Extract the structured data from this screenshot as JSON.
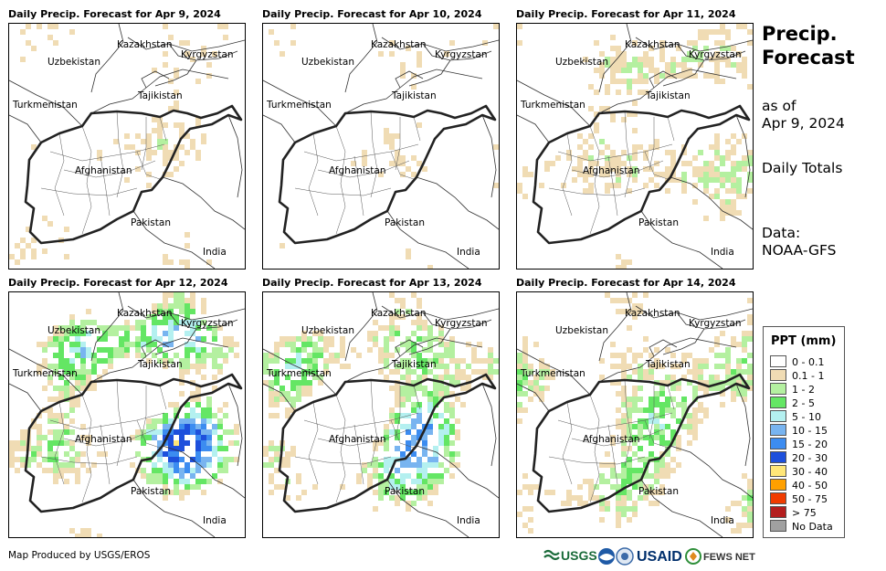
{
  "panels": [
    {
      "title": "Daily Precip. Forecast for Apr 9, 2024",
      "intensity": 0.5
    },
    {
      "title": "Daily Precip. Forecast for Apr 10, 2024",
      "intensity": 0.35
    },
    {
      "title": "Daily Precip. Forecast for Apr 11, 2024",
      "intensity": 1.2
    },
    {
      "title": "Daily Precip. Forecast for Apr 12, 2024",
      "intensity": 3.2
    },
    {
      "title": "Daily Precip. Forecast for Apr 13, 2024",
      "intensity": 2.6
    },
    {
      "title": "Daily Precip. Forecast for Apr 14, 2024",
      "intensity": 1.9
    }
  ],
  "map_labels": {
    "kazakhstan": "Kazakhstan",
    "kyrgyzstan": "Kyrgyzstan",
    "uzbekistan": "Uzbekistan",
    "tajikistan": "Tajikistan",
    "turkmenistan": "Turkmenistan",
    "afghanistan": "Afghanistan",
    "pakistan": "Pakistan",
    "india": "India"
  },
  "sidebar": {
    "title": "Precip.\nForecast",
    "as_of_line1": "as of",
    "as_of_line2": "Apr 9, 2024",
    "daily_totals": "Daily Totals",
    "data_line1": "Data:",
    "data_line2": "NOAA-GFS"
  },
  "legend": {
    "title": "PPT (mm)",
    "items": [
      {
        "label": "0 - 0.1",
        "color": "#ffffff"
      },
      {
        "label": "0.1 - 1",
        "color": "#f0dcb4"
      },
      {
        "label": "1 - 2",
        "color": "#b4f0a0"
      },
      {
        "label": "2 - 5",
        "color": "#64e664"
      },
      {
        "label": "5 - 10",
        "color": "#b4f0f0"
      },
      {
        "label": "10 - 15",
        "color": "#78b4f0"
      },
      {
        "label": "15 - 20",
        "color": "#3c8cf0"
      },
      {
        "label": "20 - 30",
        "color": "#1e50dc"
      },
      {
        "label": "30 - 40",
        "color": "#ffe678"
      },
      {
        "label": "40 - 50",
        "color": "#ffa000"
      },
      {
        "label": "50 - 75",
        "color": "#f03c00"
      },
      {
        "label": "> 75",
        "color": "#b41e1e"
      },
      {
        "label": "No Data",
        "color": "#a0a0a0"
      }
    ]
  },
  "footer": {
    "credit": "Map Produced by USGS/EROS",
    "logos": {
      "usgs": "USGS",
      "usaid": "USAID",
      "fewsnet": "FEWS NET"
    }
  }
}
